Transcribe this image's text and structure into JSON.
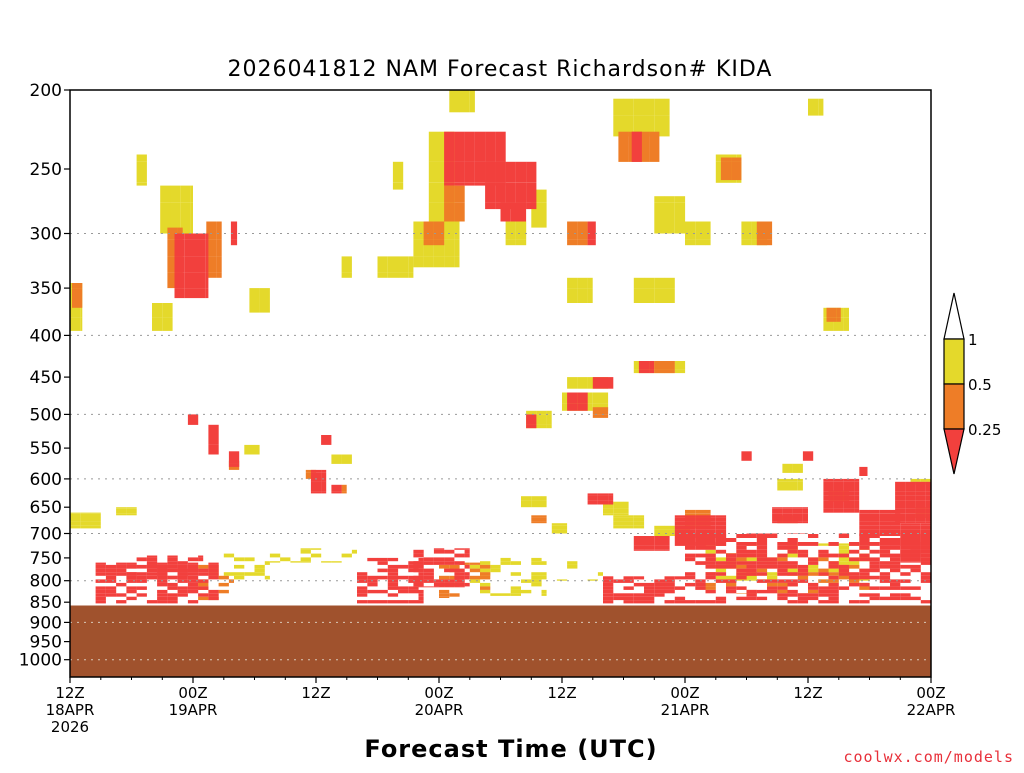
{
  "chart_data": {
    "type": "heatmap",
    "title": "2026041812 NAM Forecast Richardson# KIDA",
    "xlabel": "Forecast Time (UTC)",
    "ylabel": "",
    "credit": "coolwx.com/models",
    "x_range_hours": [
      0,
      84
    ],
    "y_axis": {
      "scale": "log-pressure",
      "range_hPa": [
        200,
        1050
      ],
      "ticks": [
        "200",
        "250",
        "300",
        "350",
        "400",
        "450",
        "500",
        "550",
        "600",
        "650",
        "700",
        "750",
        "800",
        "850",
        "900",
        "950",
        "1000"
      ],
      "gridlines_hPa": [
        300,
        400,
        500,
        600,
        700,
        800,
        900,
        1000
      ]
    },
    "x_ticks": [
      {
        "hour": 0,
        "lines": [
          "12Z",
          "18APR",
          "2026"
        ]
      },
      {
        "hour": 12,
        "lines": [
          "00Z",
          "19APR"
        ]
      },
      {
        "hour": 24,
        "lines": [
          "12Z"
        ]
      },
      {
        "hour": 36,
        "lines": [
          "00Z",
          "20APR"
        ]
      },
      {
        "hour": 48,
        "lines": [
          "12Z"
        ]
      },
      {
        "hour": 60,
        "lines": [
          "00Z",
          "21APR"
        ]
      },
      {
        "hour": 72,
        "lines": [
          "12Z"
        ]
      },
      {
        "hour": 84,
        "lines": [
          "00Z",
          "22APR"
        ]
      }
    ],
    "colorbar": {
      "labels": [
        "1",
        "0.5",
        "0.25"
      ],
      "bins": [
        {
          "range": "0.5-1",
          "color": "#e4d92b"
        },
        {
          "range": "0.25-0.5",
          "color": "#ee7d27"
        },
        {
          "range": "<0.25",
          "color": "#f2403d"
        }
      ]
    },
    "colors": {
      "yellow": "#e4d92b",
      "orange": "#ee7d27",
      "red": "#f2403d",
      "ground": "#a0522d"
    },
    "ground": {
      "top_hPa": 858,
      "note": "below-ground shading"
    },
    "blobs": [
      {
        "bin": "yellow",
        "h": [
          0.0,
          1.2
        ],
        "p": [
          345,
          395
        ]
      },
      {
        "bin": "orange",
        "h": [
          0.2,
          1.2
        ],
        "p": [
          345,
          370
        ]
      },
      {
        "bin": "yellow",
        "h": [
          6.5,
          7.5
        ],
        "p": [
          240,
          262
        ]
      },
      {
        "bin": "yellow",
        "h": [
          8.8,
          12.0
        ],
        "p": [
          262,
          300
        ]
      },
      {
        "bin": "orange",
        "h": [
          9.5,
          11.0
        ],
        "p": [
          295,
          350
        ]
      },
      {
        "bin": "red",
        "h": [
          10.2,
          13.5
        ],
        "p": [
          300,
          360
        ]
      },
      {
        "bin": "orange",
        "h": [
          13.3,
          14.8
        ],
        "p": [
          290,
          340
        ]
      },
      {
        "bin": "yellow",
        "h": [
          8.0,
          10.0
        ],
        "p": [
          365,
          395
        ]
      },
      {
        "bin": "yellow",
        "h": [
          17.5,
          19.5
        ],
        "p": [
          350,
          375
        ]
      },
      {
        "bin": "red",
        "h": [
          15.7,
          16.3
        ],
        "p": [
          290,
          310
        ]
      },
      {
        "bin": "yellow",
        "h": [
          26.5,
          27.5
        ],
        "p": [
          320,
          340
        ]
      },
      {
        "bin": "yellow",
        "h": [
          30.0,
          33.5
        ],
        "p": [
          320,
          340
        ]
      },
      {
        "bin": "yellow",
        "h": [
          33.5,
          38.0
        ],
        "p": [
          290,
          330
        ]
      },
      {
        "bin": "orange",
        "h": [
          34.5,
          36.5
        ],
        "p": [
          290,
          310
        ]
      },
      {
        "bin": "yellow",
        "h": [
          37.0,
          39.5
        ],
        "p": [
          200,
          213
        ]
      },
      {
        "bin": "yellow",
        "h": [
          35.0,
          37.5
        ],
        "p": [
          225,
          300
        ]
      },
      {
        "bin": "red",
        "h": [
          36.5,
          42.5
        ],
        "p": [
          225,
          262
        ]
      },
      {
        "bin": "orange",
        "h": [
          36.5,
          38.5
        ],
        "p": [
          262,
          290
        ]
      },
      {
        "bin": "red",
        "h": [
          40.5,
          45.5
        ],
        "p": [
          245,
          280
        ]
      },
      {
        "bin": "red",
        "h": [
          42.0,
          44.5
        ],
        "p": [
          275,
          290
        ]
      },
      {
        "bin": "yellow",
        "h": [
          45.0,
          46.5
        ],
        "p": [
          265,
          295
        ]
      },
      {
        "bin": "yellow",
        "h": [
          42.5,
          44.5
        ],
        "p": [
          290,
          310
        ]
      },
      {
        "bin": "yellow",
        "h": [
          31.5,
          32.5
        ],
        "p": [
          245,
          265
        ]
      },
      {
        "bin": "yellow",
        "h": [
          48.5,
          51.0
        ],
        "p": [
          340,
          365
        ]
      },
      {
        "bin": "orange",
        "h": [
          48.5,
          50.5
        ],
        "p": [
          290,
          310
        ]
      },
      {
        "bin": "red",
        "h": [
          50.5,
          51.3
        ],
        "p": [
          290,
          310
        ]
      },
      {
        "bin": "yellow",
        "h": [
          53.0,
          58.5
        ],
        "p": [
          205,
          228
        ]
      },
      {
        "bin": "orange",
        "h": [
          53.5,
          57.5
        ],
        "p": [
          225,
          245
        ]
      },
      {
        "bin": "red",
        "h": [
          54.8,
          55.8
        ],
        "p": [
          225,
          245
        ]
      },
      {
        "bin": "yellow",
        "h": [
          60.0,
          62.5
        ],
        "p": [
          290,
          310
        ]
      },
      {
        "bin": "yellow",
        "h": [
          55.0,
          59.0
        ],
        "p": [
          340,
          365
        ]
      },
      {
        "bin": "yellow",
        "h": [
          57.0,
          60.0
        ],
        "p": [
          270,
          300
        ]
      },
      {
        "bin": "yellow",
        "h": [
          63.0,
          65.5
        ],
        "p": [
          240,
          260
        ]
      },
      {
        "bin": "orange",
        "h": [
          63.5,
          65.5
        ],
        "p": [
          242,
          258
        ]
      },
      {
        "bin": "yellow",
        "h": [
          65.5,
          68.0
        ],
        "p": [
          290,
          310
        ]
      },
      {
        "bin": "orange",
        "h": [
          67.0,
          68.5
        ],
        "p": [
          290,
          310
        ]
      },
      {
        "bin": "yellow",
        "h": [
          72.0,
          73.5
        ],
        "p": [
          205,
          215
        ]
      },
      {
        "bin": "yellow",
        "h": [
          73.5,
          76.0
        ],
        "p": [
          370,
          395
        ]
      },
      {
        "bin": "orange",
        "h": [
          73.8,
          75.2
        ],
        "p": [
          370,
          385
        ]
      },
      {
        "bin": "yellow",
        "h": [
          55.0,
          60.0
        ],
        "p": [
          430,
          445
        ]
      },
      {
        "bin": "red",
        "h": [
          55.5,
          57.0
        ],
        "p": [
          430,
          445
        ]
      },
      {
        "bin": "orange",
        "h": [
          57.0,
          59.0
        ],
        "p": [
          430,
          445
        ]
      },
      {
        "bin": "yellow",
        "h": [
          48.5,
          52.5
        ],
        "p": [
          450,
          465
        ]
      },
      {
        "bin": "red",
        "h": [
          51.0,
          53.0
        ],
        "p": [
          450,
          465
        ]
      },
      {
        "bin": "yellow",
        "h": [
          48.0,
          52.5
        ],
        "p": [
          470,
          495
        ]
      },
      {
        "bin": "red",
        "h": [
          48.5,
          50.5
        ],
        "p": [
          470,
          495
        ]
      },
      {
        "bin": "orange",
        "h": [
          51.0,
          52.5
        ],
        "p": [
          490,
          505
        ]
      },
      {
        "bin": "yellow",
        "h": [
          44.5,
          47.0
        ],
        "p": [
          495,
          520
        ]
      },
      {
        "bin": "red",
        "h": [
          44.5,
          45.5
        ],
        "p": [
          500,
          520
        ]
      },
      {
        "bin": "red",
        "h": [
          13.5,
          14.5
        ],
        "p": [
          515,
          560
        ]
      },
      {
        "bin": "red",
        "h": [
          15.5,
          16.5
        ],
        "p": [
          555,
          580
        ]
      },
      {
        "bin": "orange",
        "h": [
          15.5,
          16.5
        ],
        "p": [
          570,
          585
        ]
      },
      {
        "bin": "red",
        "h": [
          11.5,
          12.5
        ],
        "p": [
          500,
          515
        ]
      },
      {
        "bin": "red",
        "h": [
          23.5,
          25.0
        ],
        "p": [
          585,
          625
        ]
      },
      {
        "bin": "orange",
        "h": [
          23.0,
          24.0
        ],
        "p": [
          585,
          600
        ]
      },
      {
        "bin": "red",
        "h": [
          25.5,
          26.5
        ],
        "p": [
          610,
          625
        ]
      },
      {
        "bin": "orange",
        "h": [
          26.5,
          27.0
        ],
        "p": [
          610,
          625
        ]
      },
      {
        "bin": "red",
        "h": [
          24.5,
          25.5
        ],
        "p": [
          530,
          545
        ]
      },
      {
        "bin": "yellow",
        "h": [
          25.5,
          27.5
        ],
        "p": [
          560,
          575
        ]
      },
      {
        "bin": "red",
        "h": [
          50.5,
          53.0
        ],
        "p": [
          625,
          645
        ]
      },
      {
        "bin": "yellow",
        "h": [
          52.0,
          54.5
        ],
        "p": [
          640,
          665
        ]
      },
      {
        "bin": "yellow",
        "h": [
          44.0,
          46.5
        ],
        "p": [
          630,
          650
        ]
      },
      {
        "bin": "orange",
        "h": [
          45.0,
          46.5
        ],
        "p": [
          665,
          680
        ]
      },
      {
        "bin": "yellow",
        "h": [
          47.0,
          48.5
        ],
        "p": [
          680,
          700
        ]
      },
      {
        "bin": "yellow",
        "h": [
          53.0,
          56.0
        ],
        "p": [
          665,
          690
        ]
      },
      {
        "bin": "red",
        "h": [
          59.0,
          64.0
        ],
        "p": [
          665,
          725
        ]
      },
      {
        "bin": "orange",
        "h": [
          60.0,
          62.5
        ],
        "p": [
          655,
          690
        ]
      },
      {
        "bin": "yellow",
        "h": [
          57.0,
          60.5
        ],
        "p": [
          685,
          705
        ]
      },
      {
        "bin": "red",
        "h": [
          55.0,
          58.5
        ],
        "p": [
          705,
          735
        ]
      },
      {
        "bin": "red",
        "h": [
          68.5,
          72.0
        ],
        "p": [
          650,
          680
        ]
      },
      {
        "bin": "orange",
        "h": [
          69.0,
          71.0
        ],
        "p": [
          665,
          680
        ]
      },
      {
        "bin": "yellow",
        "h": [
          69.0,
          71.5
        ],
        "p": [
          600,
          620
        ]
      },
      {
        "bin": "red",
        "h": [
          73.5,
          77.0
        ],
        "p": [
          600,
          660
        ]
      },
      {
        "bin": "orange",
        "h": [
          74.0,
          76.0
        ],
        "p": [
          620,
          640
        ]
      },
      {
        "bin": "red",
        "h": [
          77.0,
          81.0
        ],
        "p": [
          655,
          705
        ]
      },
      {
        "bin": "red",
        "h": [
          80.5,
          84.0
        ],
        "p": [
          605,
          680
        ]
      },
      {
        "bin": "red",
        "h": [
          81.0,
          84.0
        ],
        "p": [
          680,
          760
        ]
      },
      {
        "bin": "orange",
        "h": [
          82.5,
          84.0
        ],
        "p": [
          650,
          670
        ]
      },
      {
        "bin": "yellow",
        "h": [
          82.0,
          84.0
        ],
        "p": [
          600,
          610
        ]
      },
      {
        "bin": "yellow",
        "h": [
          69.5,
          71.5
        ],
        "p": [
          575,
          590
        ]
      },
      {
        "bin": "red",
        "h": [
          71.5,
          72.5
        ],
        "p": [
          555,
          570
        ]
      },
      {
        "bin": "red",
        "h": [
          65.5,
          66.5
        ],
        "p": [
          555,
          570
        ]
      },
      {
        "bin": "red",
        "h": [
          77.0,
          77.8
        ],
        "p": [
          580,
          595
        ]
      },
      {
        "bin": "yellow",
        "h": [
          0.0,
          3.0
        ],
        "p": [
          660,
          690
        ]
      },
      {
        "bin": "yellow",
        "h": [
          4.5,
          6.5
        ],
        "p": [
          650,
          665
        ]
      },
      {
        "bin": "yellow",
        "h": [
          17.0,
          18.5
        ],
        "p": [
          545,
          560
        ]
      },
      {
        "bin": "red",
        "h": [
          2.5,
          14.5
        ],
        "p": [
          760,
          855
        ],
        "density": 0.55
      },
      {
        "bin": "red",
        "h": [
          5.5,
          13.0
        ],
        "p": [
          745,
          790
        ],
        "density": 0.55
      },
      {
        "bin": "orange",
        "h": [
          12.5,
          16.0
        ],
        "p": [
          760,
          845
        ],
        "density": 0.4
      },
      {
        "bin": "yellow",
        "h": [
          15.0,
          19.5
        ],
        "p": [
          740,
          800
        ],
        "density": 0.35
      },
      {
        "bin": "yellow",
        "h": [
          19.5,
          28.0
        ],
        "p": [
          730,
          760
        ],
        "density": 0.35
      },
      {
        "bin": "red",
        "h": [
          28.0,
          34.5
        ],
        "p": [
          750,
          855
        ],
        "density": 0.6
      },
      {
        "bin": "red",
        "h": [
          33.5,
          39.0
        ],
        "p": [
          730,
          815
        ],
        "density": 0.6
      },
      {
        "bin": "orange",
        "h": [
          36.0,
          41.0
        ],
        "p": [
          760,
          840
        ],
        "density": 0.3
      },
      {
        "bin": "yellow",
        "h": [
          39.0,
          46.5
        ],
        "p": [
          750,
          835
        ],
        "density": 0.35
      },
      {
        "bin": "yellow",
        "h": [
          46.5,
          52.0
        ],
        "p": [
          750,
          800
        ],
        "density": 0.25
      },
      {
        "bin": "red",
        "h": [
          52.0,
          60.0
        ],
        "p": [
          790,
          855
        ],
        "density": 0.7
      },
      {
        "bin": "red",
        "h": [
          60.0,
          84.0
        ],
        "p": [
          700,
          855
        ],
        "density": 0.5
      },
      {
        "bin": "orange",
        "h": [
          62.0,
          78.0
        ],
        "p": [
          740,
          830
        ],
        "density": 0.25
      },
      {
        "bin": "yellow",
        "h": [
          62.0,
          78.0
        ],
        "p": [
          720,
          800
        ],
        "density": 0.3
      }
    ]
  }
}
